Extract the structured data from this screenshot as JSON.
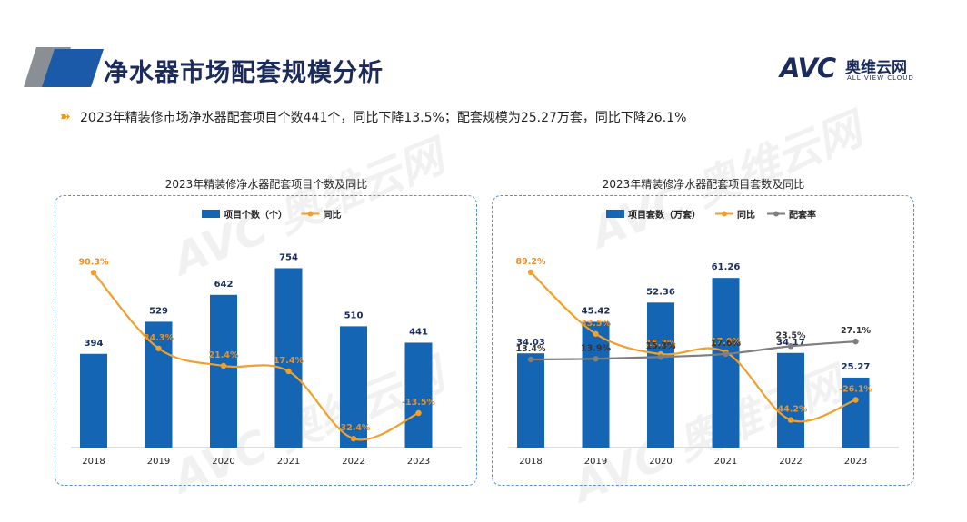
{
  "page": {
    "title": "净水器市场配套规模分析",
    "summary": "2023年精装修市场净水器配套项目个数441个，同比下降13.5%；配套规模为25.27万套，同比下降26.1%",
    "bullet_icon": "double-chevron-icon",
    "logo": {
      "brand": "AVC",
      "name_cn": "奥维云网",
      "name_en": "ALL VIEW CLOUD"
    }
  },
  "colors": {
    "bar": "#1565b5",
    "growth": "#f0a02c",
    "rate": "#7f7f7f",
    "title": "#1a2b5c",
    "panel_border": "#5b8fc9"
  },
  "chart_data": [
    {
      "type": "bar",
      "title": "2023年精装修净水器配套项目个数及同比",
      "categories": [
        "2018",
        "2019",
        "2020",
        "2021",
        "2022",
        "2023"
      ],
      "series": [
        {
          "name": "项目个数（个）",
          "type": "bar",
          "values": [
            394,
            529,
            642,
            754,
            510,
            441
          ],
          "labels": [
            "394",
            "529",
            "642",
            "754",
            "510",
            "441"
          ]
        },
        {
          "name": "同比",
          "type": "line",
          "values": [
            90.3,
            34.3,
            21.4,
            17.4,
            -32.4,
            -13.5
          ],
          "labels": [
            "90.3%",
            "34.3%",
            "21.4%",
            "17.4%",
            "-32.4%",
            "-13.5%"
          ]
        }
      ],
      "legend_position": "top-left"
    },
    {
      "type": "bar",
      "title": "2023年精装修净水器配套项目套数及同比",
      "categories": [
        "2018",
        "2019",
        "2020",
        "2021",
        "2022",
        "2023"
      ],
      "series": [
        {
          "name": "项目套数（万套）",
          "type": "bar",
          "values": [
            34.03,
            45.42,
            52.36,
            61.26,
            34.17,
            25.27
          ],
          "labels": [
            "34.03",
            "45.42",
            "52.36",
            "61.26",
            "34.17",
            "25.27"
          ]
        },
        {
          "name": "同比",
          "type": "line",
          "values": [
            89.2,
            33.5,
            15.3,
            17.0,
            -44.2,
            -26.1
          ],
          "labels": [
            "89.2%",
            "33.5%",
            "15.3%",
            "17.0%",
            "-44.2%",
            "-26.1%"
          ]
        },
        {
          "name": "配套率",
          "type": "line",
          "values": [
            13.4,
            13.9,
            15.3,
            17.6,
            23.5,
            27.1
          ],
          "labels": [
            "13.4%",
            "13.9%",
            "15.3%",
            "17.6%",
            "23.5%",
            "27.1%"
          ]
        }
      ],
      "legend_position": "top-left"
    }
  ]
}
